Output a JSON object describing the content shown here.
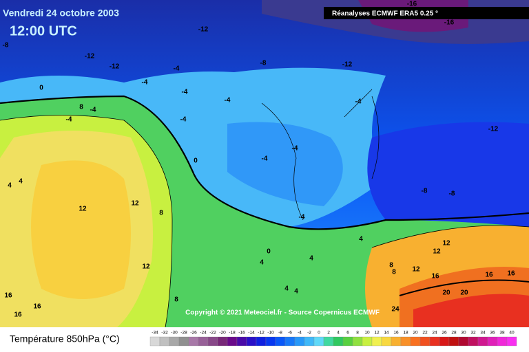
{
  "header": {
    "date": "Vendredi 24 octobre 2003",
    "time": "12:00 UTC",
    "source": "Réanalyses ECMWF ERA5 0.25 °"
  },
  "copyright": "Copyright © 2021 Meteociel.fr - Source Copernicus ECMWF",
  "contour_labels": [
    -16,
    -16,
    -12,
    -8,
    -12,
    -12,
    -4,
    -8,
    -12,
    -4,
    0,
    8,
    -4,
    -4,
    -4,
    -4,
    -4,
    -4,
    -4,
    -12,
    0,
    -4,
    4,
    4,
    12,
    12,
    8,
    12,
    -4,
    -8,
    -8,
    4,
    0,
    4,
    4,
    4,
    12,
    12,
    8,
    8,
    12,
    16,
    16,
    16,
    20,
    20,
    24,
    16,
    16,
    16,
    8,
    4
  ],
  "legend": {
    "title": "Température 850hPa (°C)",
    "ticks": [
      -34,
      -32,
      -30,
      -28,
      -26,
      -24,
      -22,
      -20,
      -18,
      -16,
      -14,
      -12,
      -10,
      -8,
      -6,
      -4,
      -2,
      0,
      2,
      4,
      6,
      8,
      10,
      12,
      14,
      16,
      18,
      20,
      22,
      24,
      26,
      28,
      30,
      32,
      34,
      36,
      38,
      40
    ],
    "colors": [
      "#d8d8d8",
      "#c0c0c0",
      "#a8a8a8",
      "#909090",
      "#a878a8",
      "#986098",
      "#884888",
      "#782878",
      "#6a0a8a",
      "#4a0aa8",
      "#2a10c8",
      "#1020e0",
      "#0838f0",
      "#0a58f8",
      "#1878f8",
      "#2898f8",
      "#40b8f8",
      "#60d8f8",
      "#40d8a0",
      "#30c860",
      "#58d040",
      "#90e040",
      "#c8f040",
      "#f0f050",
      "#f8d840",
      "#f8b030",
      "#f89028",
      "#f87020",
      "#f05020",
      "#e83020",
      "#d81818",
      "#c01010",
      "#b00830",
      "#c01060",
      "#d01890",
      "#e020b8",
      "#f028d8",
      "#f830f0"
    ]
  }
}
